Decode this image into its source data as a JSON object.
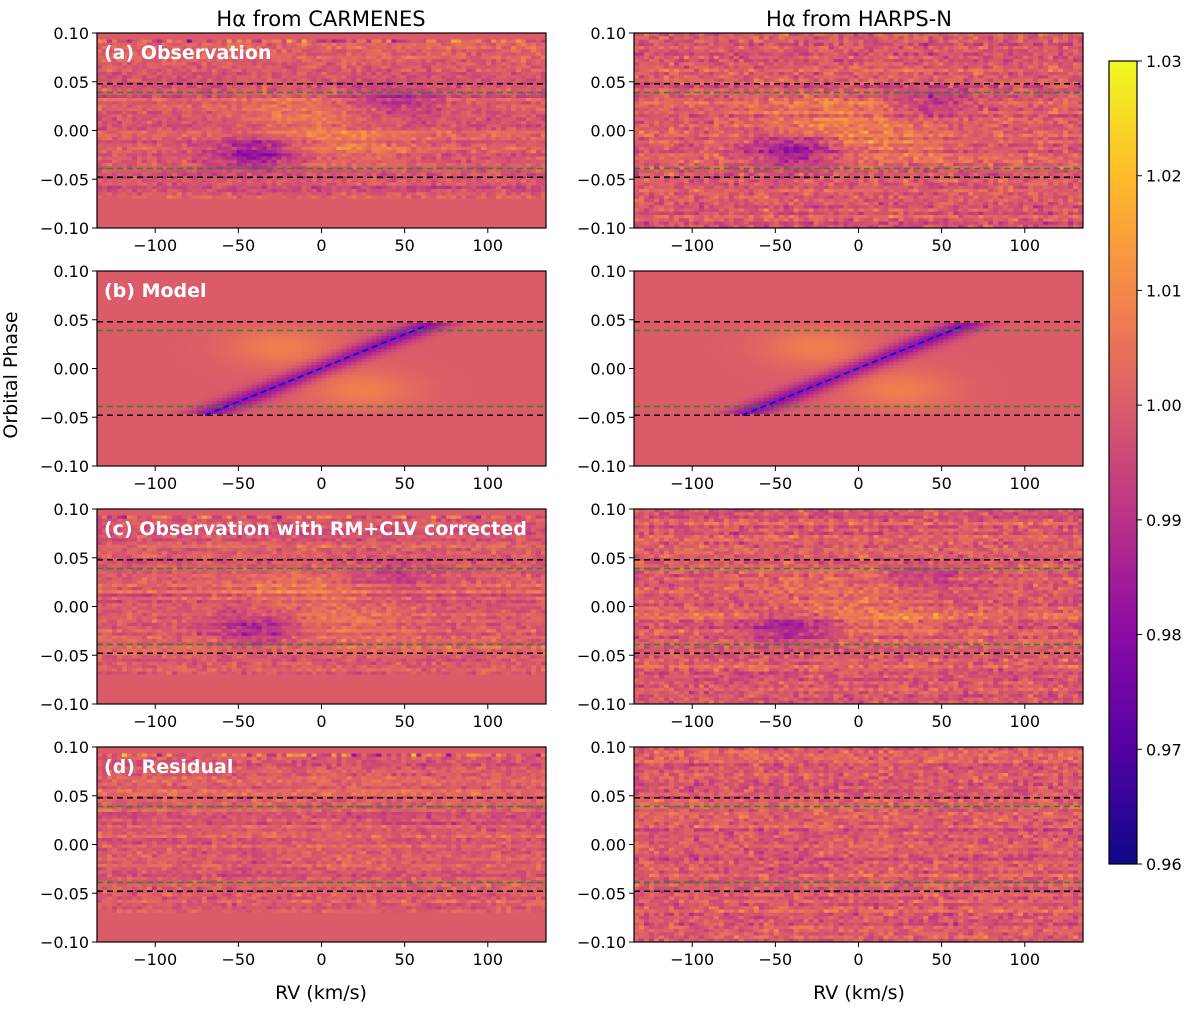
{
  "chart_data": {
    "type": "heatmap",
    "column_titles": [
      "Hα from CARMENES",
      "Hα from HARPS-N"
    ],
    "x_label": "RV (km/s)",
    "y_label": "Orbital Phase",
    "xlim": [
      -135,
      135
    ],
    "ylim": [
      -0.1,
      0.1
    ],
    "x_ticks": [
      -100,
      -50,
      0,
      50,
      100
    ],
    "x_tick_labels": [
      "−100",
      "−50",
      "0",
      "50",
      "100"
    ],
    "y_ticks": [
      0.1,
      0.05,
      0.0,
      -0.05,
      -0.1
    ],
    "y_tick_labels": [
      "0.10",
      "0.05",
      "0.00",
      "−0.05",
      "−0.10"
    ],
    "colorbar": {
      "min": 0.96,
      "max": 1.03,
      "ticks": [
        1.03,
        1.02,
        1.01,
        1.0,
        0.99,
        0.98,
        0.97,
        0.96
      ],
      "tick_labels": [
        "1.03",
        "1.02",
        "1.01",
        "1.00",
        "0.99",
        "0.98",
        "0.97",
        "0.96"
      ],
      "colormap": "plasma"
    },
    "reference_lines": {
      "contact_t1_t4_phase": [
        0.048,
        -0.048
      ],
      "contact_t2_t3_phase": [
        0.039,
        -0.039
      ],
      "planet_trail_rv": [
        -70,
        63
      ],
      "planet_trail_phase": [
        -0.048,
        0.044
      ],
      "contact_t1_t4_color": "#000000",
      "contact_t2_t3_color": "#228b22",
      "trail_color": "#0000ff"
    },
    "rows": [
      {
        "key": "obs",
        "label": "(a) Observation",
        "mode": "obs"
      },
      {
        "key": "model",
        "label": "(b) Model",
        "mode": "model"
      },
      {
        "key": "corr",
        "label": "(c) Observation with RM+CLV corrected",
        "mode": "corr"
      },
      {
        "key": "resid",
        "label": "(d) Residual",
        "mode": "resid"
      }
    ],
    "panel_notes": "Observed RM+CLV shadow: absorption trough (~0.98) around RV -45 km/s at phase -0.03 and near +45 km/s at phase +0.03; CARMENES has no data for phases > 0.092 and < -0.07 (flat 1.00)."
  }
}
